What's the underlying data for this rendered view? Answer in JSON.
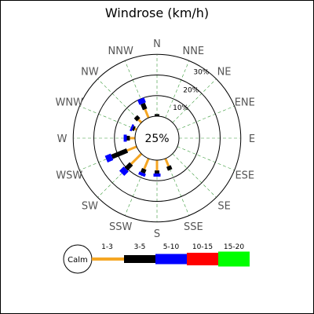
{
  "chart_data": {
    "type": "windrose",
    "title": "Windrose (km/h)",
    "calm_label": "25%",
    "directions": [
      "N",
      "NNE",
      "NE",
      "ENE",
      "E",
      "ESE",
      "SE",
      "SSE",
      "S",
      "SSW",
      "SW",
      "WSW",
      "W",
      "WNW",
      "NW",
      "NNW"
    ],
    "rings": [
      {
        "value": 10,
        "label": "10%"
      },
      {
        "value": 20,
        "label": "20%"
      },
      {
        "value": 30,
        "label": "30%"
      }
    ],
    "bins": [
      {
        "label": "1-3",
        "color": "#f5a623"
      },
      {
        "label": "3-5",
        "color": "#000000"
      },
      {
        "label": "5-10",
        "color": "#0000ff"
      },
      {
        "label": "10-15",
        "color": "#ff0000"
      },
      {
        "label": "15-20",
        "color": "#00ff00"
      }
    ],
    "legend_calm": "Calm",
    "frequencies": [
      {
        "dir": "N",
        "values": [
          0,
          1,
          0,
          0,
          0
        ]
      },
      {
        "dir": "NNE",
        "values": [
          0,
          0,
          0,
          0,
          0
        ]
      },
      {
        "dir": "NE",
        "values": [
          0,
          0,
          0,
          0,
          0
        ]
      },
      {
        "dir": "ENE",
        "values": [
          0,
          0,
          0,
          0,
          0
        ]
      },
      {
        "dir": "E",
        "values": [
          0,
          0,
          0,
          0,
          0
        ]
      },
      {
        "dir": "ESE",
        "values": [
          0,
          0,
          0,
          0,
          0
        ]
      },
      {
        "dir": "SE",
        "values": [
          0,
          0,
          0,
          0,
          0
        ]
      },
      {
        "dir": "SSE",
        "values": [
          4.0,
          2.0,
          0,
          0,
          0
        ]
      },
      {
        "dir": "S",
        "values": [
          5.0,
          1.5,
          1.5,
          0,
          0
        ]
      },
      {
        "dir": "SSW",
        "values": [
          5.5,
          2.0,
          1.5,
          0,
          0
        ]
      },
      {
        "dir": "SW",
        "values": [
          7.0,
          3.5,
          3.0,
          0,
          0
        ]
      },
      {
        "dir": "WSW",
        "values": [
          5.0,
          8.0,
          3.0,
          0,
          0
        ]
      },
      {
        "dir": "W",
        "values": [
          2.5,
          1.5,
          1.5,
          0,
          0
        ]
      },
      {
        "dir": "WNW",
        "values": [
          1.0,
          1.0,
          1.0,
          0,
          0
        ]
      },
      {
        "dir": "NW",
        "values": [
          2.0,
          2.0,
          0,
          0,
          0
        ]
      },
      {
        "dir": "NNW",
        "values": [
          4.5,
          3.0,
          2.5,
          0,
          0
        ]
      }
    ]
  }
}
